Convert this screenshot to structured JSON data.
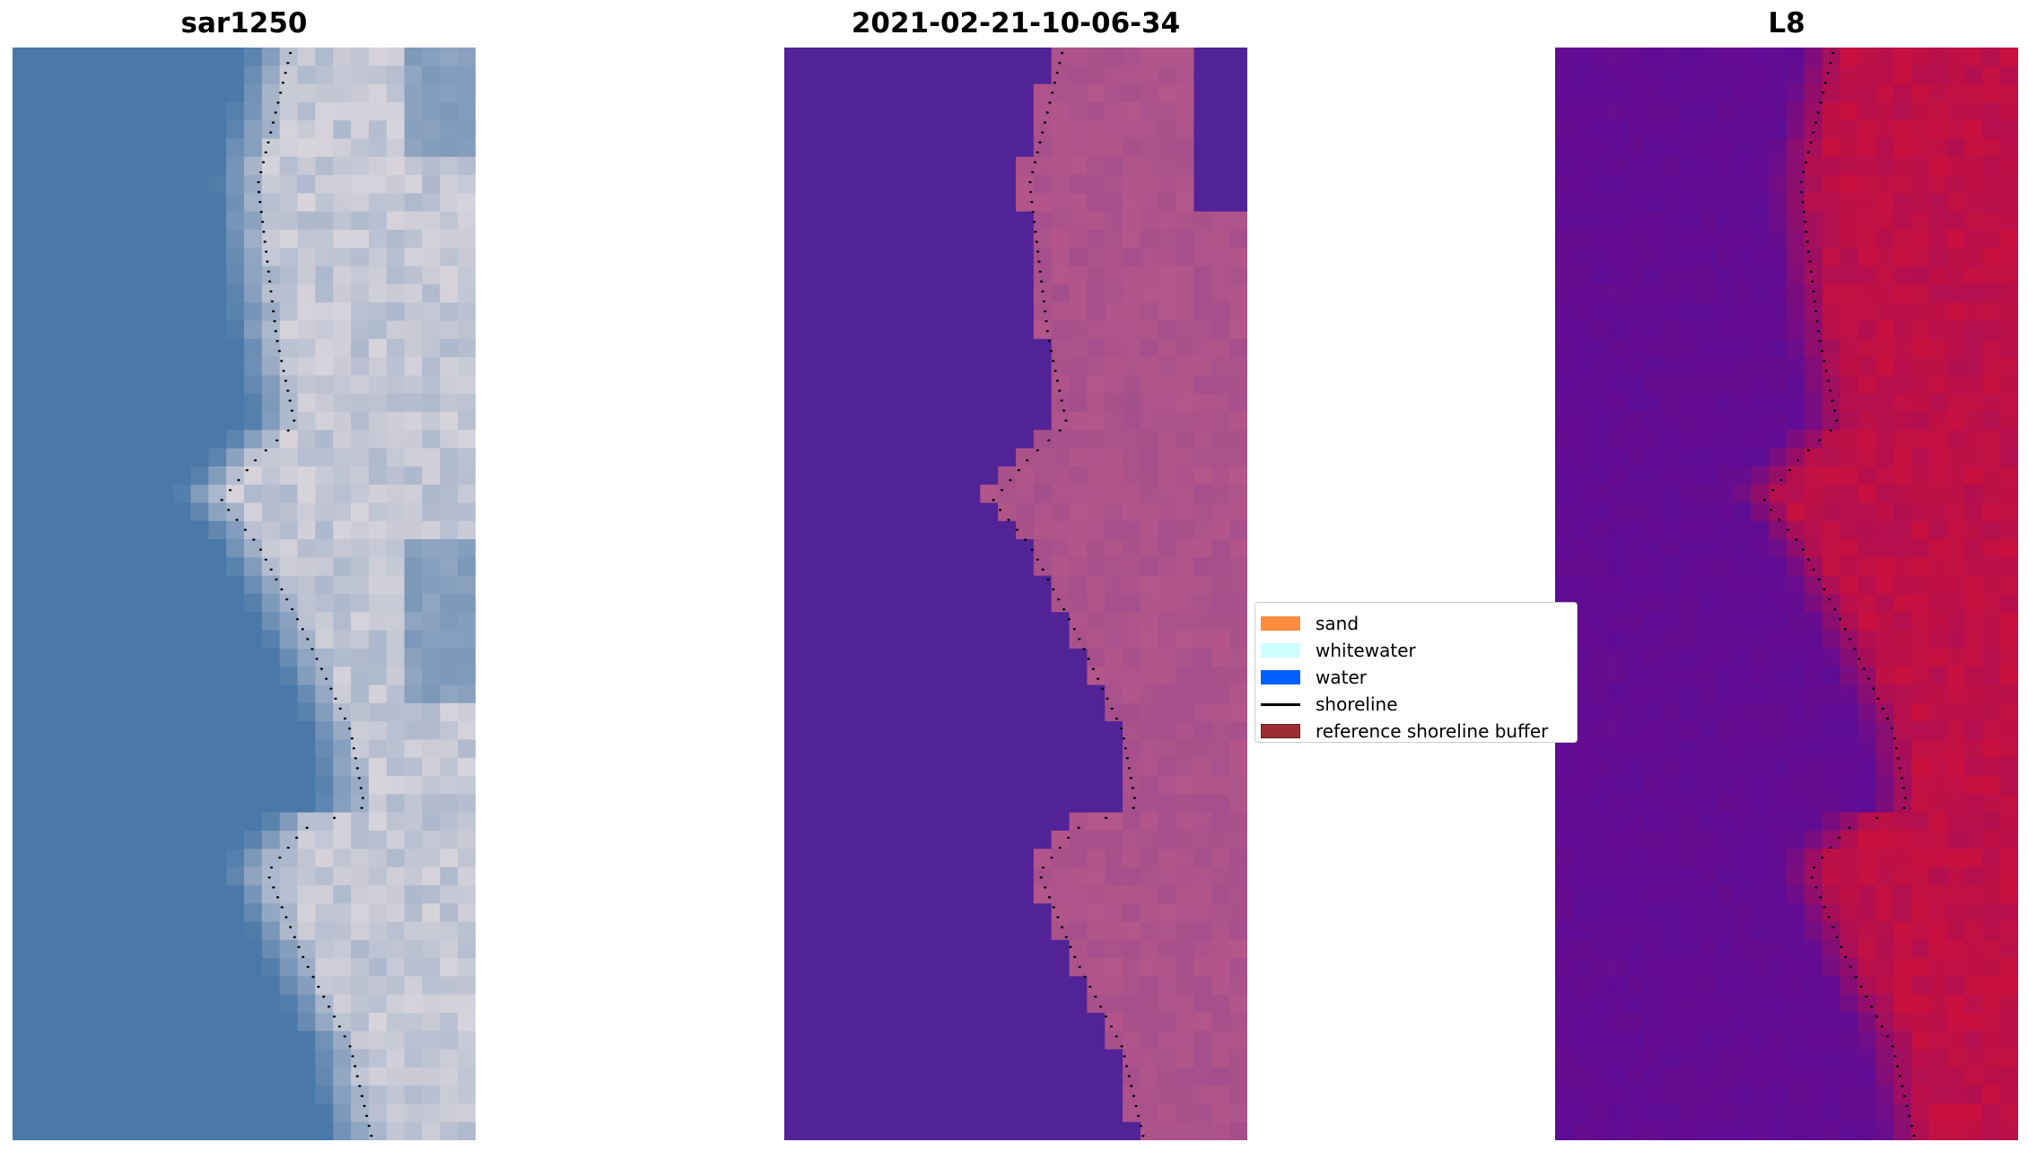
{
  "chart_data": [
    {
      "type": "image",
      "title": "sar1250",
      "axes": "off",
      "palette": {
        "water": "#4a78a8",
        "land": "#d8d4dc"
      }
    },
    {
      "type": "image",
      "title": "2021-02-21-10-06-34",
      "axes": "off",
      "palette": {
        "water": "#522396",
        "land": "#b4568a"
      }
    },
    {
      "type": "image",
      "title": "L8",
      "axes": "off",
      "palette": {
        "water": "#5e0c96",
        "land": "#c8103e"
      }
    }
  ],
  "legend": {
    "placement": "center",
    "items": [
      {
        "label": "sand",
        "color": "#ff8c3f",
        "kind": "patch"
      },
      {
        "label": "whitewater",
        "color": "#ccffff",
        "kind": "patch"
      },
      {
        "label": "water",
        "color": "#0060ff",
        "kind": "patch"
      },
      {
        "label": "shoreline",
        "color": "#000000",
        "kind": "line"
      },
      {
        "label": "reference shoreline buffer",
        "color": "#9a2e34",
        "kind": "patch"
      }
    ]
  }
}
